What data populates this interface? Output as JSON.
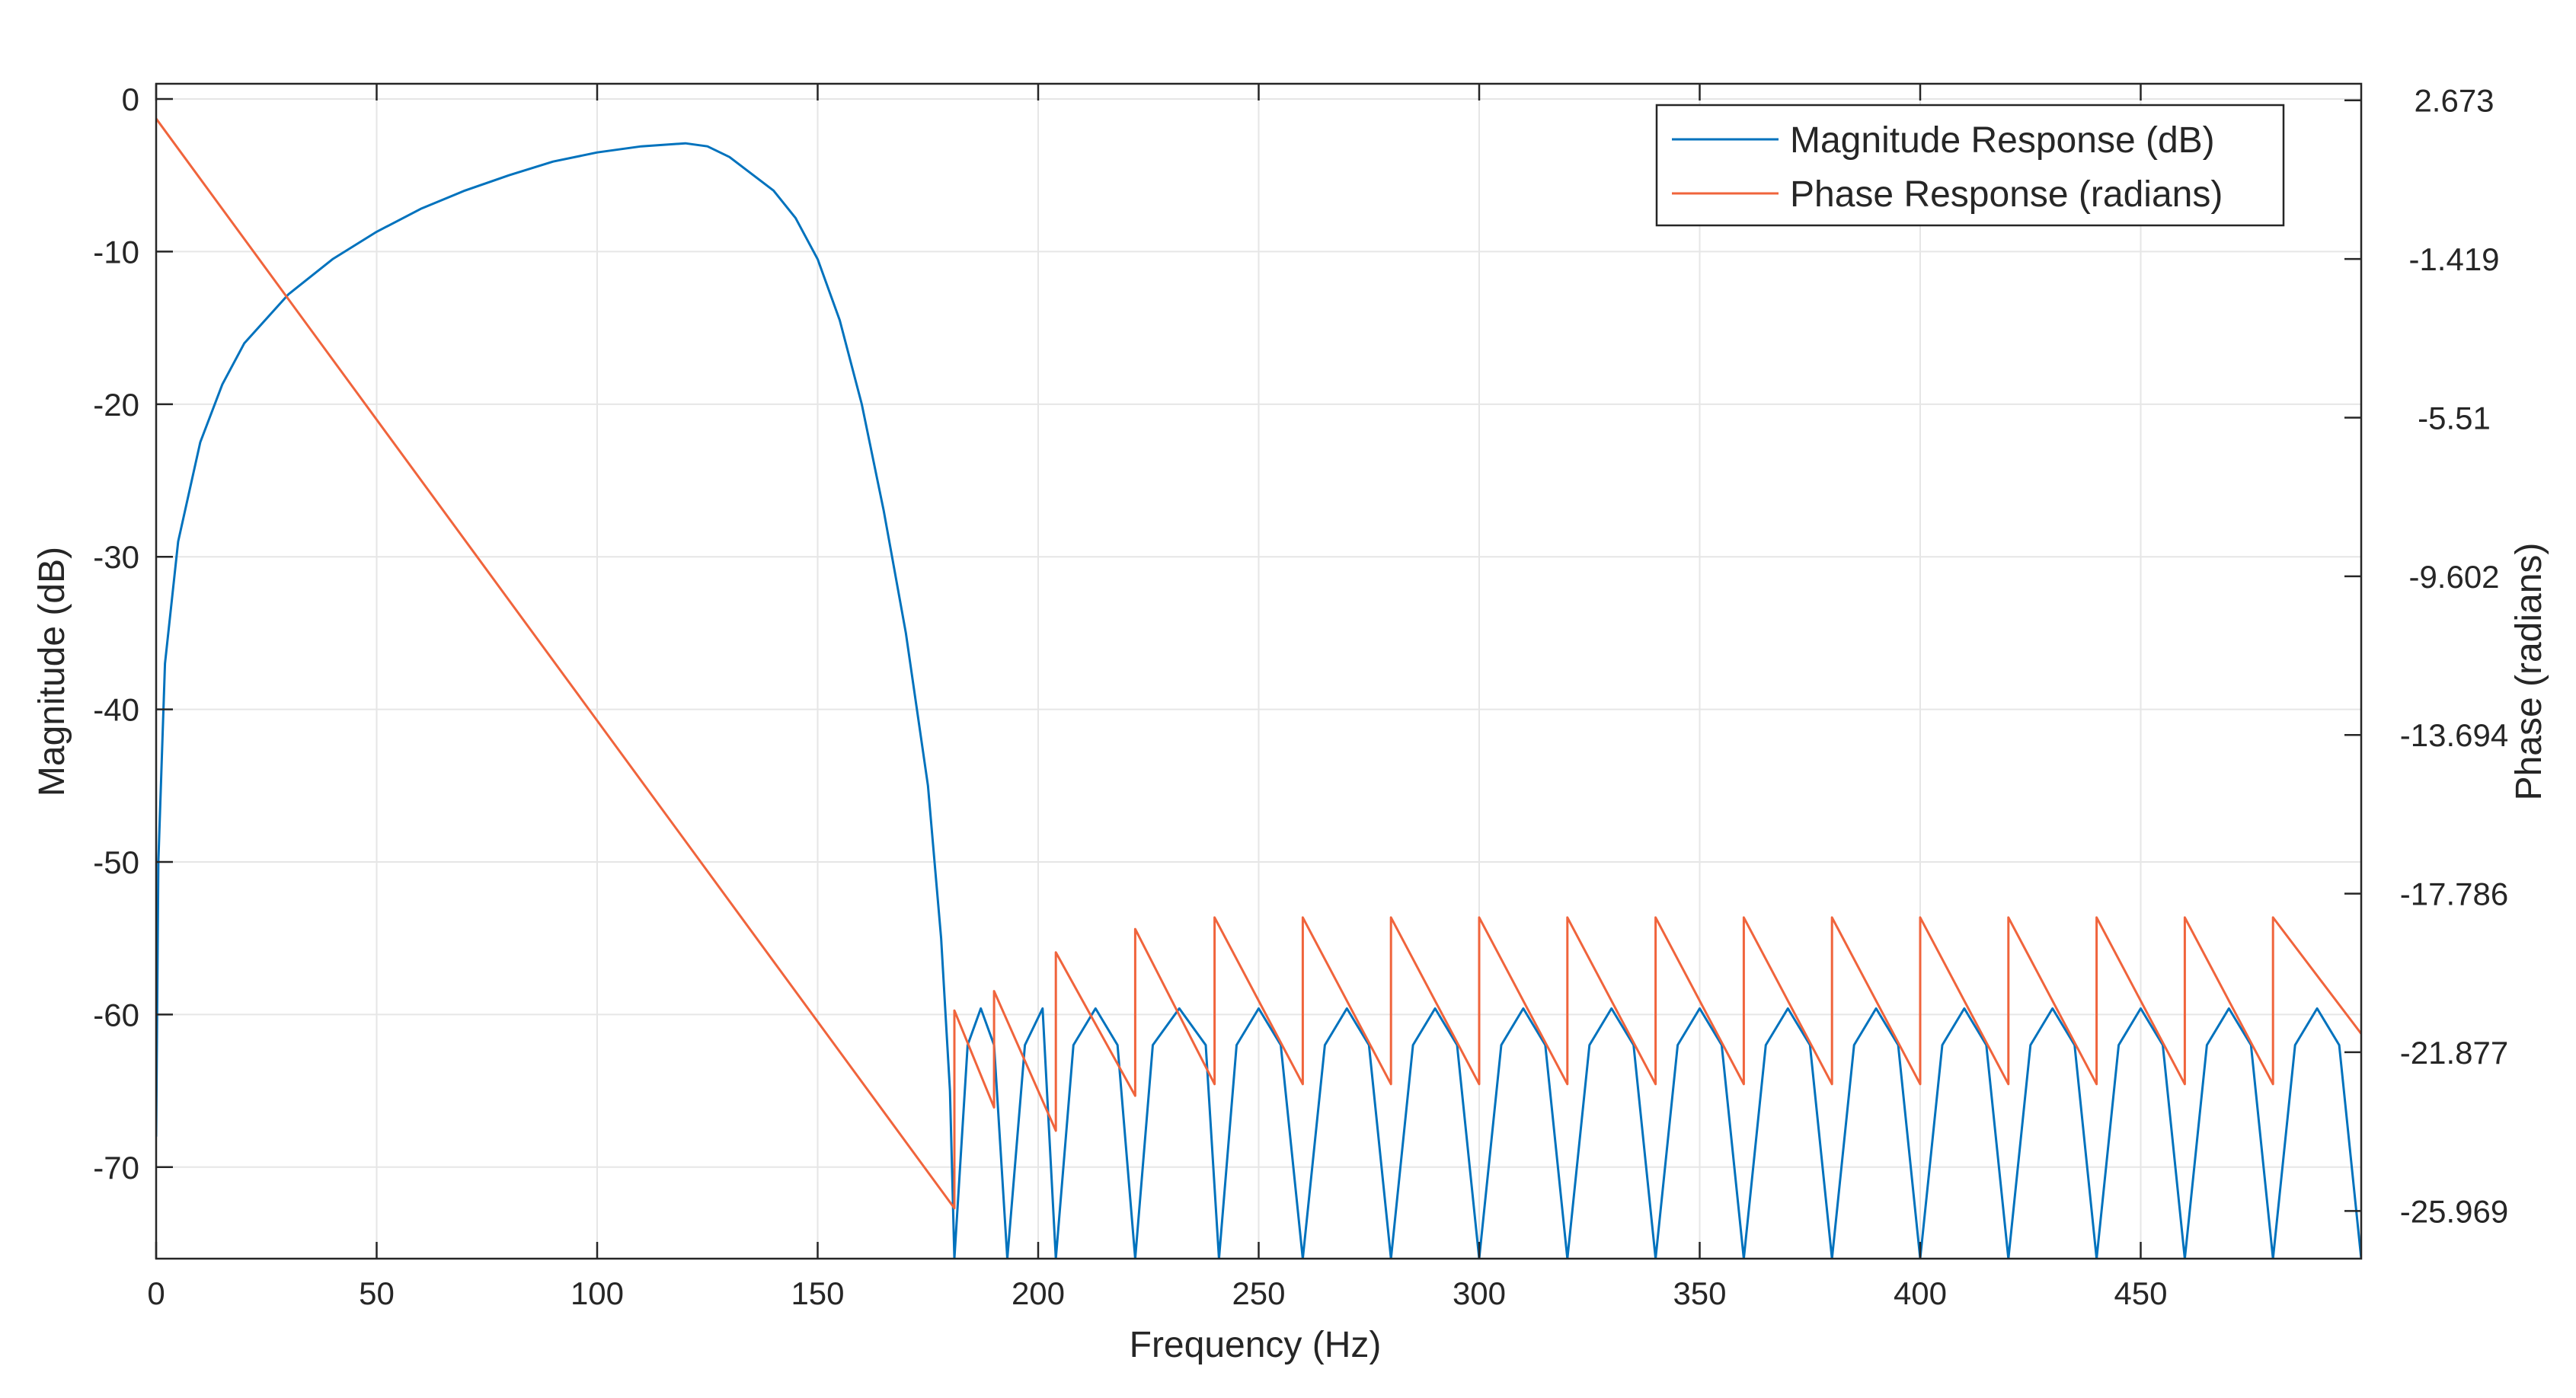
{
  "colors": {
    "magnitude": "#0072BD",
    "phase": "#F0643C",
    "grid": "#e6e6e6",
    "axis": "#262626"
  },
  "chart_data": {
    "type": "line",
    "xlabel": "Frequency (Hz)",
    "ylabel_left": "Magnitude (dB)",
    "ylabel_right": "Phase (radians)",
    "xlim": [
      0,
      500
    ],
    "ylim_left": [
      -76,
      1
    ],
    "ylim_right": [
      -27.2,
      3.1
    ],
    "x_ticks": [
      0,
      50,
      100,
      150,
      200,
      250,
      300,
      350,
      400,
      450
    ],
    "x_tick_labels": [
      "0",
      "50",
      "100",
      "150",
      "200",
      "250",
      "300",
      "350",
      "400",
      "450"
    ],
    "y_ticks_left": [
      0,
      -10,
      -20,
      -30,
      -40,
      -50,
      -60,
      -70
    ],
    "y_tick_labels_left": [
      "0",
      "-10",
      "-20",
      "-30",
      "-40",
      "-50",
      "-60",
      "-70"
    ],
    "y_ticks_right": [
      2.673,
      -1.419,
      -5.51,
      -9.602,
      -13.694,
      -17.786,
      -21.877,
      -25.969
    ],
    "y_tick_labels_right": [
      "2.673",
      "-1.419",
      "-5.51",
      "-9.602",
      "-13.694",
      "-17.786",
      "-21.877",
      "-25.969"
    ],
    "grid": true,
    "legend_position": "top-right",
    "series": [
      {
        "name": "Magnitude Response (dB)",
        "axis": "left",
        "x": [
          0,
          0.5,
          2,
          5,
          10,
          15,
          20,
          30,
          40,
          50,
          60,
          70,
          80,
          90,
          100,
          110,
          120,
          125,
          130,
          140,
          145,
          150,
          155,
          160,
          165,
          170,
          175,
          178,
          180,
          181,
          184,
          187,
          190,
          193,
          197,
          201,
          204,
          208,
          213,
          218,
          222,
          226,
          232,
          238,
          241,
          245,
          250,
          255,
          260,
          265,
          270,
          275,
          280,
          285,
          290,
          295,
          300,
          305,
          310,
          315,
          320,
          325,
          330,
          335,
          340,
          345,
          350,
          355,
          360,
          365,
          370,
          375,
          380,
          385,
          390,
          395,
          400,
          405,
          410,
          415,
          420,
          425,
          430,
          435,
          440,
          445,
          450,
          455,
          460,
          465,
          470,
          475,
          480,
          485,
          490,
          495,
          500
        ],
        "y": [
          -68,
          -50,
          -37,
          -29,
          -22.5,
          -18.7,
          -16,
          -12.8,
          -10.5,
          -8.7,
          -7.2,
          -6.0,
          -5.0,
          -4.1,
          -3.5,
          -3.1,
          -2.9,
          -3.1,
          -3.8,
          -6.0,
          -7.8,
          -10.5,
          -14.5,
          -20,
          -27,
          -35,
          -45,
          -55,
          -65,
          -76,
          -62,
          -59.6,
          -62,
          -76,
          -62,
          -59.6,
          -76,
          -62,
          -59.6,
          -62,
          -76,
          -62,
          -59.6,
          -62,
          -76,
          -62,
          -59.6,
          -62,
          -76,
          -62,
          -59.6,
          -62,
          -76,
          -62,
          -59.6,
          -62,
          -76,
          -62,
          -59.6,
          -62,
          -76,
          -62,
          -59.6,
          -62,
          -76,
          -62,
          -59.6,
          -62,
          -76,
          -62,
          -59.6,
          -62,
          -76,
          -62,
          -59.6,
          -62,
          -76,
          -62,
          -59.6,
          -62,
          -76,
          -62,
          -59.6,
          -62,
          -76,
          -62,
          -59.6,
          -62,
          -76,
          -62,
          -59.6,
          -62,
          -76,
          -62,
          -59.6,
          -62,
          -76
        ]
      },
      {
        "name": "Phase Response (radians)",
        "axis": "right",
        "x": [
          0,
          181,
          181,
          190,
          190,
          204,
          204,
          222,
          222,
          240,
          240,
          260,
          260,
          280,
          280,
          300,
          300,
          320,
          320,
          340,
          340,
          360,
          360,
          380,
          380,
          400,
          400,
          420,
          420,
          440,
          440,
          460,
          460,
          480,
          480,
          500
        ],
        "y": [
          2.2,
          -25.9,
          -20.8,
          -23.3,
          -20.3,
          -23.9,
          -19.3,
          -23.0,
          -18.7,
          -22.7,
          -18.4,
          -22.7,
          -18.4,
          -22.7,
          -18.4,
          -22.7,
          -18.4,
          -22.7,
          -18.4,
          -22.7,
          -18.4,
          -22.7,
          -18.4,
          -22.7,
          -18.4,
          -22.7,
          -18.4,
          -22.7,
          -18.4,
          -22.7,
          -18.4,
          -22.7,
          -18.4,
          -22.7,
          -18.4,
          -21.4
        ]
      }
    ]
  }
}
